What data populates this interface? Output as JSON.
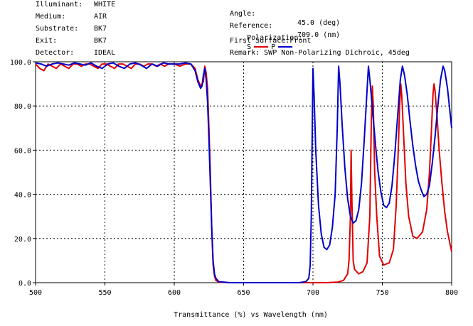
{
  "header": {
    "left": [
      {
        "label": "Illuminant:",
        "value": "WHITE"
      },
      {
        "label": "Medium:",
        "value": "AIR"
      },
      {
        "label": "Substrate:",
        "value": "BK7"
      },
      {
        "label": "Exit:",
        "value": "BK7"
      },
      {
        "label": "Detector:",
        "value": "IDEAL"
      }
    ],
    "right": {
      "angle_label": "Angle:",
      "angle_value": "45.0 (deg)",
      "reference_label": "Reference:",
      "reference_value": "709.0 (nm)",
      "polarization_label": "Polarization:",
      "pol_s": "S",
      "pol_p": "P",
      "first_surface": "First Surface:Front",
      "remark": "Remark: SWP Non-Polarizing Dichroic, 45deg"
    }
  },
  "colors": {
    "s": "#e00000",
    "p": "#0000cc",
    "grid": "#000000"
  },
  "chart_data": {
    "type": "line",
    "xlabel": "Transmittance (%)  vs  Wavelength (nm)",
    "ylabel": "",
    "xlim": [
      500,
      800
    ],
    "ylim": [
      0,
      100
    ],
    "x_ticks": [
      "500",
      "550",
      "600",
      "650",
      "700",
      "750",
      "800"
    ],
    "y_ticks": [
      "0.0",
      "20.0",
      "40.0",
      "60.0",
      "80.0",
      "100.0"
    ],
    "grid": true,
    "series": [
      {
        "name": "S",
        "color": "#e00000",
        "points": [
          [
            500,
            99
          ],
          [
            503,
            97
          ],
          [
            506,
            96
          ],
          [
            509,
            99
          ],
          [
            512,
            98
          ],
          [
            515,
            97
          ],
          [
            518,
            99
          ],
          [
            521,
            98
          ],
          [
            524,
            97
          ],
          [
            527,
            99
          ],
          [
            530,
            99
          ],
          [
            533,
            98
          ],
          [
            536,
            99
          ],
          [
            539,
            99
          ],
          [
            542,
            98
          ],
          [
            545,
            97
          ],
          [
            548,
            99
          ],
          [
            551,
            99
          ],
          [
            554,
            98
          ],
          [
            557,
            97
          ],
          [
            560,
            99
          ],
          [
            563,
            99
          ],
          [
            566,
            98
          ],
          [
            569,
            97
          ],
          [
            572,
            99
          ],
          [
            575,
            99
          ],
          [
            578,
            98
          ],
          [
            581,
            99
          ],
          [
            584,
            99
          ],
          [
            587,
            98
          ],
          [
            590,
            99
          ],
          [
            593,
            98
          ],
          [
            596,
            99
          ],
          [
            600,
            99
          ],
          [
            604,
            98
          ],
          [
            608,
            99
          ],
          [
            612,
            99
          ],
          [
            615,
            97
          ],
          [
            617,
            92
          ],
          [
            619,
            89
          ],
          [
            621,
            91
          ],
          [
            622,
            98
          ],
          [
            623,
            95
          ],
          [
            624,
            88
          ],
          [
            625,
            70
          ],
          [
            626,
            50
          ],
          [
            627,
            25
          ],
          [
            628,
            8
          ],
          [
            629,
            3
          ],
          [
            630,
            1
          ],
          [
            632,
            0.3
          ],
          [
            640,
            0
          ],
          [
            700,
            0
          ],
          [
            710,
            0
          ],
          [
            718,
            0.3
          ],
          [
            722,
            1
          ],
          [
            725,
            4
          ],
          [
            726,
            10
          ],
          [
            727,
            30
          ],
          [
            727.5,
            60
          ],
          [
            728,
            40
          ],
          [
            729,
            10
          ],
          [
            730,
            6
          ],
          [
            733,
            4
          ],
          [
            736,
            5
          ],
          [
            739,
            9
          ],
          [
            741,
            30
          ],
          [
            742,
            70
          ],
          [
            742.8,
            89
          ],
          [
            743.5,
            80
          ],
          [
            744.5,
            50
          ],
          [
            746,
            30
          ],
          [
            748,
            12
          ],
          [
            751,
            8
          ],
          [
            755,
            9
          ],
          [
            758,
            15
          ],
          [
            760,
            35
          ],
          [
            761.5,
            60
          ],
          [
            762.5,
            80
          ],
          [
            763.3,
            90
          ],
          [
            764,
            85
          ],
          [
            765.5,
            65
          ],
          [
            767,
            45
          ],
          [
            769,
            30
          ],
          [
            772,
            21
          ],
          [
            775,
            20
          ],
          [
            779,
            23
          ],
          [
            782,
            33
          ],
          [
            784,
            50
          ],
          [
            785.5,
            70
          ],
          [
            786.5,
            85
          ],
          [
            787.3,
            90
          ],
          [
            788,
            87
          ],
          [
            789.5,
            75
          ],
          [
            791,
            60
          ],
          [
            793,
            45
          ],
          [
            795,
            32
          ],
          [
            797,
            23
          ],
          [
            800,
            14
          ]
        ]
      },
      {
        "name": "P",
        "color": "#0000cc",
        "points": [
          [
            500,
            99.5
          ],
          [
            504,
            99
          ],
          [
            508,
            98
          ],
          [
            512,
            99
          ],
          [
            516,
            99.5
          ],
          [
            520,
            99
          ],
          [
            524,
            98.5
          ],
          [
            528,
            99.5
          ],
          [
            532,
            99
          ],
          [
            536,
            98.5
          ],
          [
            540,
            99.5
          ],
          [
            544,
            98
          ],
          [
            548,
            97
          ],
          [
            552,
            99
          ],
          [
            556,
            99.5
          ],
          [
            560,
            98
          ],
          [
            564,
            97
          ],
          [
            568,
            99
          ],
          [
            572,
            99.5
          ],
          [
            576,
            98.5
          ],
          [
            580,
            97
          ],
          [
            584,
            99
          ],
          [
            588,
            98
          ],
          [
            592,
            99.5
          ],
          [
            596,
            99
          ],
          [
            600,
            99
          ],
          [
            604,
            99
          ],
          [
            608,
            99.5
          ],
          [
            612,
            99
          ],
          [
            615,
            96
          ],
          [
            617,
            91
          ],
          [
            619,
            88
          ],
          [
            620,
            89
          ],
          [
            621,
            94
          ],
          [
            622,
            97
          ],
          [
            623,
            92
          ],
          [
            624,
            82
          ],
          [
            625,
            65
          ],
          [
            626,
            45
          ],
          [
            627,
            25
          ],
          [
            628,
            10
          ],
          [
            629,
            4
          ],
          [
            630,
            2
          ],
          [
            632,
            0.5
          ],
          [
            640,
            0
          ],
          [
            690,
            0
          ],
          [
            695,
            0.5
          ],
          [
            697,
            2
          ],
          [
            698,
            8
          ],
          [
            698.8,
            30
          ],
          [
            699.5,
            70
          ],
          [
            700,
            97
          ],
          [
            700.8,
            85
          ],
          [
            702,
            60
          ],
          [
            704,
            35
          ],
          [
            706,
            22
          ],
          [
            708,
            16
          ],
          [
            710,
            15
          ],
          [
            712,
            17
          ],
          [
            714,
            25
          ],
          [
            716,
            40
          ],
          [
            717.5,
            70
          ],
          [
            718.5,
            98
          ],
          [
            719.5,
            90
          ],
          [
            721,
            72
          ],
          [
            723,
            52
          ],
          [
            725,
            38
          ],
          [
            727,
            30
          ],
          [
            729,
            27
          ],
          [
            731,
            28
          ],
          [
            733,
            33
          ],
          [
            735,
            45
          ],
          [
            737,
            65
          ],
          [
            738.8,
            85
          ],
          [
            740,
            98
          ],
          [
            741,
            92
          ],
          [
            743,
            78
          ],
          [
            745,
            63
          ],
          [
            747,
            50
          ],
          [
            749,
            41
          ],
          [
            751,
            35
          ],
          [
            753,
            34
          ],
          [
            755,
            36
          ],
          [
            757,
            44
          ],
          [
            759,
            58
          ],
          [
            761,
            75
          ],
          [
            763,
            92
          ],
          [
            764.5,
            98
          ],
          [
            766,
            94
          ],
          [
            768,
            85
          ],
          [
            770,
            73
          ],
          [
            772,
            62
          ],
          [
            774,
            53
          ],
          [
            776,
            46
          ],
          [
            778,
            42
          ],
          [
            780,
            39
          ],
          [
            782,
            40
          ],
          [
            784,
            44
          ],
          [
            786,
            54
          ],
          [
            788,
            66
          ],
          [
            790,
            80
          ],
          [
            792,
            92
          ],
          [
            793.8,
            98
          ],
          [
            795,
            96
          ],
          [
            797,
            88
          ],
          [
            798.5,
            79
          ],
          [
            800,
            70
          ]
        ]
      }
    ]
  }
}
